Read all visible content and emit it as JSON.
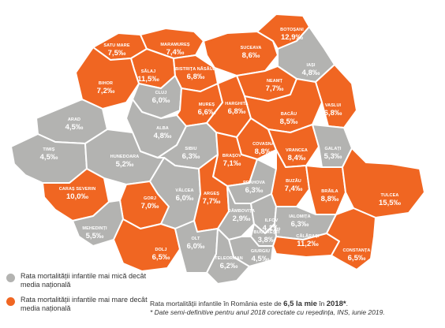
{
  "colors": {
    "below": "#b3b3b1",
    "above": "#f06622"
  },
  "counties": [
    {
      "id": "satu-mare",
      "name": "SATU MARE",
      "value": "7,5‰",
      "group": "above"
    },
    {
      "id": "maramures",
      "name": "MARAMUREȘ",
      "value": "7,4‰",
      "group": "above"
    },
    {
      "id": "suceava",
      "name": "SUCEAVA",
      "value": "8,6‰",
      "group": "above"
    },
    {
      "id": "botosani",
      "name": "BOTOȘANI",
      "value": "12,9‰",
      "group": "above"
    },
    {
      "id": "salaj",
      "name": "SĂLAJ",
      "value": "11,5‰",
      "group": "above"
    },
    {
      "id": "bistrita",
      "name": "BISTRIȚA NĂSĂUD",
      "value": "6,8‰",
      "group": "above"
    },
    {
      "id": "iasi",
      "name": "IAȘI",
      "value": "4,8‰",
      "group": "below"
    },
    {
      "id": "bihor",
      "name": "BIHOR",
      "value": "7,2‰",
      "group": "above"
    },
    {
      "id": "cluj",
      "name": "CLUJ",
      "value": "6,0‰",
      "group": "below"
    },
    {
      "id": "neamt",
      "name": "NEAMȚ",
      "value": "7,7‰",
      "group": "above"
    },
    {
      "id": "vaslui",
      "name": "VASLUI",
      "value": "6,8‰",
      "group": "above"
    },
    {
      "id": "mures",
      "name": "MUREȘ",
      "value": "6,6‰",
      "group": "above"
    },
    {
      "id": "harghita",
      "name": "HARGHITA",
      "value": "6,8‰",
      "group": "above"
    },
    {
      "id": "bacau",
      "name": "BACĂU",
      "value": "8,5‰",
      "group": "above"
    },
    {
      "id": "arad",
      "name": "ARAD",
      "value": "4,5‰",
      "group": "below"
    },
    {
      "id": "alba",
      "name": "ALBA",
      "value": "4,8‰",
      "group": "below"
    },
    {
      "id": "covasna",
      "name": "COVASNA",
      "value": "8,8‰",
      "group": "above"
    },
    {
      "id": "vrancea",
      "name": "VRANCEA",
      "value": "8,4‰",
      "group": "above"
    },
    {
      "id": "galati",
      "name": "GALAȚI",
      "value": "5,3‰",
      "group": "below"
    },
    {
      "id": "sibiu",
      "name": "SIBIU",
      "value": "6,3‰",
      "group": "below"
    },
    {
      "id": "timis",
      "name": "TIMIȘ",
      "value": "4,5‰",
      "group": "below"
    },
    {
      "id": "hunedoara",
      "name": "HUNEDOARA",
      "value": "5,2‰",
      "group": "below"
    },
    {
      "id": "brasov",
      "name": "BRAȘOV",
      "value": "7,1‰",
      "group": "above"
    },
    {
      "id": "caras",
      "name": "CARAȘ SEVERIN",
      "value": "10,0‰",
      "group": "above"
    },
    {
      "id": "gorj",
      "name": "GORJ",
      "value": "7,0‰",
      "group": "above"
    },
    {
      "id": "valcea",
      "name": "VÂLCEA",
      "value": "6,0‰",
      "group": "below"
    },
    {
      "id": "arges",
      "name": "ARGEȘ",
      "value": "7,7‰",
      "group": "above"
    },
    {
      "id": "prahova",
      "name": "PRAHOVA",
      "value": "6,3‰",
      "group": "below"
    },
    {
      "id": "buzau",
      "name": "BUZĂU",
      "value": "7,4‰",
      "group": "above"
    },
    {
      "id": "braila",
      "name": "BRĂILA",
      "value": "8,8‰",
      "group": "above"
    },
    {
      "id": "tulcea",
      "name": "TULCEA",
      "value": "15,5‰",
      "group": "above"
    },
    {
      "id": "dambovita",
      "name": "DÂMBOVIȚA",
      "value": "2,9‰",
      "group": "below"
    },
    {
      "id": "ilfov",
      "name": "ILFOV",
      "value": "4,1‰",
      "group": "below"
    },
    {
      "id": "ialomita",
      "name": "IALOMIȚA",
      "value": "6,3‰",
      "group": "below"
    },
    {
      "id": "mehedinti",
      "name": "MEHEDINȚI",
      "value": "5,5‰",
      "group": "below"
    },
    {
      "id": "bucuresti",
      "name": "BUCUREȘTI",
      "value": "3,8‰",
      "group": "below"
    },
    {
      "id": "dolj",
      "name": "DOLJ",
      "value": "6,5‰",
      "group": "above"
    },
    {
      "id": "olt",
      "name": "OLT",
      "value": "6,0‰",
      "group": "below"
    },
    {
      "id": "giurgiu",
      "name": "GIURGIU",
      "value": "4,5‰",
      "group": "below"
    },
    {
      "id": "calarasi",
      "name": "CĂLĂRAȘI",
      "value": "11,2‰",
      "group": "above"
    },
    {
      "id": "constanta",
      "name": "CONSTANȚA",
      "value": "6,5‰",
      "group": "above"
    },
    {
      "id": "teleorman",
      "name": "TELEORMAN",
      "value": "6,2‰",
      "group": "below"
    }
  ],
  "legend": [
    {
      "group": "below",
      "text": "Rata mortalității infantile mai mică decât media națională"
    },
    {
      "group": "above",
      "text": "Rata mortalității infantile mai mare decât media națională"
    }
  ],
  "note": {
    "prefix": "Rata mortalității infantile în România este de ",
    "value": "6,5 la mie",
    "middle": " în ",
    "year": "2018*",
    "suffix": ".",
    "footnote": "* Date semi-definitive pentru anul 2018 corectate cu reședința, INS, iunie 2019."
  }
}
